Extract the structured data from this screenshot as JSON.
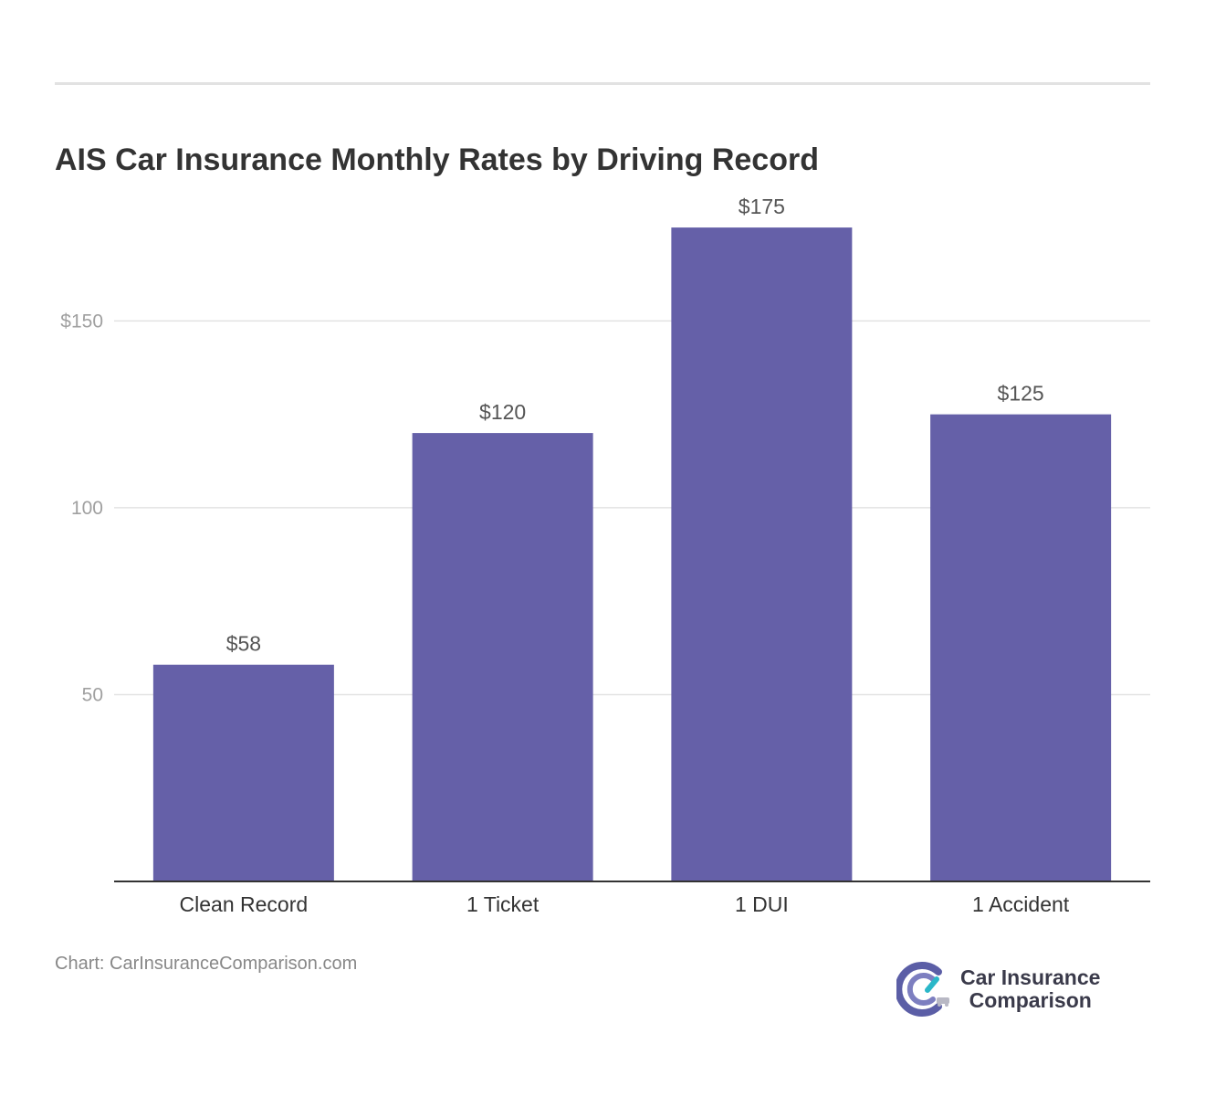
{
  "title": "AIS Car Insurance Monthly Rates by Driving Record",
  "source": "Chart: CarInsuranceComparison.com",
  "brand": {
    "line1": "Car Insurance",
    "line2": "Comparison",
    "colors": [
      "#5b5ea6",
      "#2ab7c8",
      "#3a3a4a"
    ]
  },
  "chart_data": {
    "type": "bar",
    "categories": [
      "Clean Record",
      "1 Ticket",
      "1 DUI",
      "1 Accident"
    ],
    "values": [
      58,
      120,
      175,
      125
    ],
    "value_labels": [
      "$58",
      "$120",
      "$175",
      "$125"
    ],
    "ylim": [
      0,
      187
    ],
    "yticks": [
      50,
      100,
      150
    ],
    "ytick_labels": [
      "50",
      "100",
      "$150"
    ],
    "grid": true,
    "bar_color": "#6560a8",
    "title": "AIS Car Insurance Monthly Rates by Driving Record",
    "xlabel": "",
    "ylabel": ""
  }
}
